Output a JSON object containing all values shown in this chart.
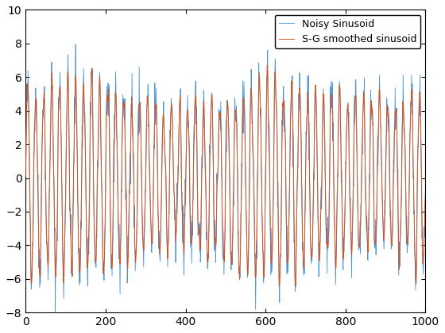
{
  "n_points": 1000,
  "angular_freq": 0.314159,
  "noise_std": 1.0,
  "amplitude_base": 5.0,
  "amplitude_mod_freq": 0.002,
  "amplitude_mod_depth": 0.15,
  "sg_window": 7,
  "sg_poly": 3,
  "noisy_color": "#4C96D7",
  "smooth_color": "#D95319",
  "noisy_label": "Noisy Sinusoid",
  "smooth_label": "S-G smoothed sinusoid",
  "xlim": [
    0,
    1000
  ],
  "ylim": [
    -8,
    10
  ],
  "yticks": [
    -8,
    -6,
    -4,
    -2,
    0,
    2,
    4,
    6,
    8,
    10
  ],
  "xticks": [
    0,
    200,
    400,
    600,
    800,
    1000
  ],
  "legend_loc": "upper right",
  "linewidth_noisy": 0.6,
  "linewidth_smooth": 0.7,
  "seed": 42,
  "bg_color": "#FFFFFF",
  "tick_fontsize": 10,
  "legend_fontsize": 9
}
